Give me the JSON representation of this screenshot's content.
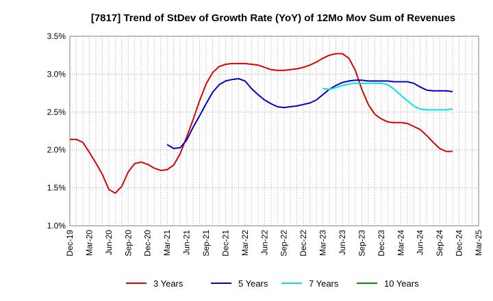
{
  "chart_data": {
    "type": "line",
    "title": "[7817]  Trend of StDev of Growth Rate (YoY) of 12Mo Mov Sum of Revenues",
    "xlabel": "",
    "ylabel": "",
    "x_ticks": [
      "Dec-19",
      "Mar-20",
      "Jun-20",
      "Sep-20",
      "Dec-20",
      "Mar-21",
      "Jun-21",
      "Sep-21",
      "Dec-21",
      "Mar-22",
      "Jun-22",
      "Sep-22",
      "Dec-22",
      "Mar-23",
      "Jun-23",
      "Sep-23",
      "Dec-23",
      "Mar-24",
      "Jun-24",
      "Sep-24",
      "Dec-24",
      "Mar-25"
    ],
    "y_ticks": [
      "1.0%",
      "1.5%",
      "2.0%",
      "2.5%",
      "3.0%",
      "3.5%"
    ],
    "ylim": [
      1.0,
      3.5
    ],
    "x_range_months": [
      0,
      63
    ],
    "grid": true,
    "legend_position": "bottom",
    "series": [
      {
        "name": "3 Years",
        "color": "#dd0000",
        "points": [
          [
            0,
            2.14
          ],
          [
            1,
            2.14
          ],
          [
            2,
            2.1
          ],
          [
            3,
            1.97
          ],
          [
            4,
            1.83
          ],
          [
            5,
            1.68
          ],
          [
            6,
            1.48
          ],
          [
            7,
            1.43
          ],
          [
            8,
            1.52
          ],
          [
            9,
            1.71
          ],
          [
            10,
            1.82
          ],
          [
            11,
            1.84
          ],
          [
            12,
            1.81
          ],
          [
            13,
            1.76
          ],
          [
            14,
            1.73
          ],
          [
            15,
            1.74
          ],
          [
            16,
            1.8
          ],
          [
            17,
            1.95
          ],
          [
            18,
            2.17
          ],
          [
            19,
            2.4
          ],
          [
            20,
            2.65
          ],
          [
            21,
            2.87
          ],
          [
            22,
            3.02
          ],
          [
            23,
            3.1
          ],
          [
            24,
            3.13
          ],
          [
            25,
            3.14
          ],
          [
            26,
            3.14
          ],
          [
            27,
            3.14
          ],
          [
            28,
            3.13
          ],
          [
            29,
            3.12
          ],
          [
            30,
            3.09
          ],
          [
            31,
            3.06
          ],
          [
            32,
            3.05
          ],
          [
            33,
            3.05
          ],
          [
            34,
            3.06
          ],
          [
            35,
            3.07
          ],
          [
            36,
            3.09
          ],
          [
            37,
            3.12
          ],
          [
            38,
            3.16
          ],
          [
            39,
            3.21
          ],
          [
            40,
            3.25
          ],
          [
            41,
            3.27
          ],
          [
            42,
            3.27
          ],
          [
            43,
            3.21
          ],
          [
            44,
            3.05
          ],
          [
            45,
            2.8
          ],
          [
            46,
            2.6
          ],
          [
            47,
            2.47
          ],
          [
            48,
            2.41
          ],
          [
            49,
            2.37
          ],
          [
            50,
            2.36
          ],
          [
            51,
            2.36
          ],
          [
            52,
            2.35
          ],
          [
            53,
            2.31
          ],
          [
            54,
            2.27
          ],
          [
            55,
            2.19
          ],
          [
            56,
            2.1
          ],
          [
            57,
            2.02
          ],
          [
            58,
            1.98
          ],
          [
            59,
            1.98
          ]
        ]
      },
      {
        "name": "5 Years",
        "color": "#0000cc",
        "points": [
          [
            15,
            2.07
          ],
          [
            16,
            2.02
          ],
          [
            17,
            2.03
          ],
          [
            18,
            2.13
          ],
          [
            19,
            2.3
          ],
          [
            20,
            2.45
          ],
          [
            21,
            2.61
          ],
          [
            22,
            2.76
          ],
          [
            23,
            2.86
          ],
          [
            24,
            2.91
          ],
          [
            25,
            2.93
          ],
          [
            26,
            2.94
          ],
          [
            27,
            2.91
          ],
          [
            28,
            2.81
          ],
          [
            29,
            2.73
          ],
          [
            30,
            2.66
          ],
          [
            31,
            2.61
          ],
          [
            32,
            2.57
          ],
          [
            33,
            2.56
          ],
          [
            34,
            2.57
          ],
          [
            35,
            2.58
          ],
          [
            36,
            2.6
          ],
          [
            37,
            2.62
          ],
          [
            38,
            2.66
          ],
          [
            39,
            2.73
          ],
          [
            40,
            2.8
          ],
          [
            41,
            2.85
          ],
          [
            42,
            2.89
          ],
          [
            43,
            2.91
          ],
          [
            44,
            2.92
          ],
          [
            45,
            2.92
          ],
          [
            46,
            2.91
          ],
          [
            47,
            2.91
          ],
          [
            48,
            2.91
          ],
          [
            49,
            2.91
          ],
          [
            50,
            2.9
          ],
          [
            51,
            2.9
          ],
          [
            52,
            2.9
          ],
          [
            53,
            2.88
          ],
          [
            54,
            2.83
          ],
          [
            55,
            2.79
          ],
          [
            56,
            2.78
          ],
          [
            57,
            2.78
          ],
          [
            58,
            2.78
          ],
          [
            59,
            2.77
          ]
        ]
      },
      {
        "name": "7 Years",
        "color": "#00e5e5",
        "points": [
          [
            39,
            2.81
          ],
          [
            40,
            2.8
          ],
          [
            41,
            2.82
          ],
          [
            42,
            2.85
          ],
          [
            43,
            2.87
          ],
          [
            44,
            2.88
          ],
          [
            45,
            2.88
          ],
          [
            46,
            2.88
          ],
          [
            47,
            2.88
          ],
          [
            48,
            2.88
          ],
          [
            49,
            2.86
          ],
          [
            50,
            2.8
          ],
          [
            51,
            2.72
          ],
          [
            52,
            2.65
          ],
          [
            53,
            2.58
          ],
          [
            54,
            2.54
          ],
          [
            55,
            2.53
          ],
          [
            56,
            2.53
          ],
          [
            57,
            2.53
          ],
          [
            58,
            2.53
          ],
          [
            59,
            2.54
          ]
        ]
      },
      {
        "name": "10 Years",
        "color": "#008800",
        "points": []
      }
    ]
  }
}
